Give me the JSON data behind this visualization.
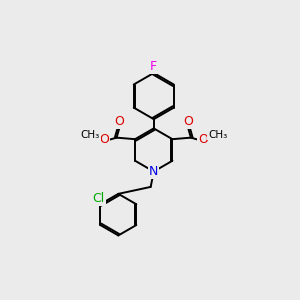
{
  "background_color": "#ebebeb",
  "bond_color": "#000000",
  "atom_colors": {
    "F": "#ee00ee",
    "Cl": "#00aa00",
    "N": "#0000ee",
    "O": "#dd0000",
    "C": "#000000"
  },
  "figsize": [
    3.0,
    3.0
  ],
  "dpi": 100
}
